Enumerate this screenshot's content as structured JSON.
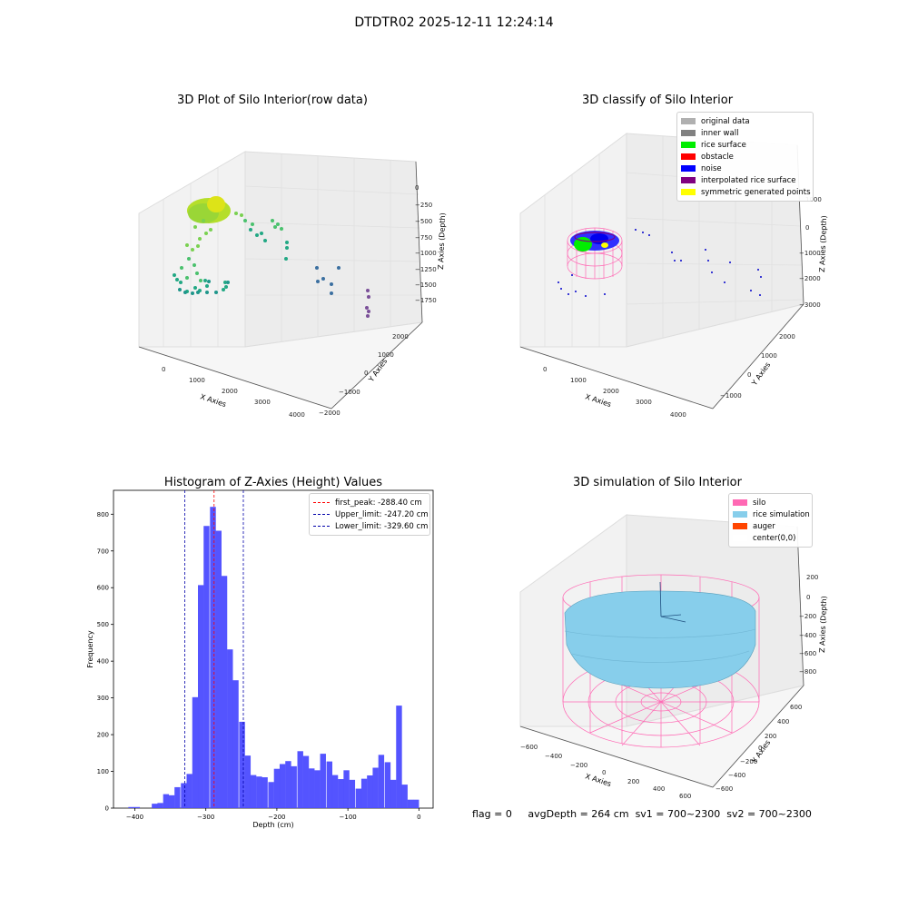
{
  "suptitle": "DTDTR02 2025-12-11 12:24:14",
  "plots": {
    "raw": {
      "title": "3D Plot of Silo Interior(row data)",
      "x_label": "X Axies",
      "y_label": "Y Axies",
      "z_label": "Z Axies (Depth)",
      "x_ticks": [
        "0",
        "1000",
        "2000",
        "3000",
        "4000"
      ],
      "y_ticks": [
        "2000",
        "1000",
        "0",
        "−1000",
        "−2000"
      ],
      "z_ticks": [
        "0",
        "−250",
        "−500",
        "−750",
        "−1000",
        "−1250",
        "−1500",
        "−1750"
      ]
    },
    "classify": {
      "title": "3D classify of Silo Interior",
      "x_label": "X Axies",
      "y_label": "Y Axies",
      "z_label": "Z Axies (Depth)",
      "x_ticks": [
        "0",
        "1000",
        "2000",
        "3000",
        "4000"
      ],
      "y_ticks": [
        "2000",
        "1000",
        "0",
        "−1000"
      ],
      "z_ticks": [
        "1000",
        "0",
        "−1000",
        "−2000",
        "−3000"
      ],
      "legend": [
        {
          "label": "original data",
          "color": "#b0b0b0"
        },
        {
          "label": "inner wall",
          "color": "#808080"
        },
        {
          "label": "rice surface",
          "color": "#00ee00"
        },
        {
          "label": "obstacle",
          "color": "#ff0000"
        },
        {
          "label": "noise",
          "color": "#0000ff"
        },
        {
          "label": "interpolated rice surface",
          "color": "#800080"
        },
        {
          "label": "symmetric generated points",
          "color": "#ffff00"
        }
      ]
    },
    "simulation": {
      "title": "3D simulation of Silo Interior",
      "x_label": "X Axies",
      "y_label": "Y Axies",
      "z_label": "Z Axies (Depth)",
      "x_ticks": [
        "−600",
        "−400",
        "−200",
        "0",
        "200",
        "400",
        "600"
      ],
      "y_ticks": [
        "600",
        "400",
        "200",
        "0",
        "−200",
        "−400",
        "−600"
      ],
      "z_ticks": [
        "200",
        "0",
        "−200",
        "−400",
        "−600",
        "−800"
      ],
      "legend": [
        {
          "label": "silo",
          "color": "#ff69b4"
        },
        {
          "label": "rice simulation",
          "color": "#87ceeb"
        },
        {
          "label": "auger",
          "color": "#ff4500"
        },
        {
          "label": "center(0,0)",
          "color": "#ffffff"
        }
      ]
    }
  },
  "chart_data": {
    "type": "bar",
    "title": "Histogram of Z-Axies (Height) Values",
    "xlabel": "Depth (cm)",
    "ylabel": "Frequency",
    "xlim": [
      -430,
      20
    ],
    "ylim": [
      0,
      865
    ],
    "x_ticks": [
      -400,
      -300,
      -200,
      -100,
      0
    ],
    "y_ticks": [
      0,
      100,
      200,
      300,
      400,
      500,
      600,
      700,
      800
    ],
    "bin_width": 8.2,
    "bins": [
      {
        "x": -405,
        "value": 3
      },
      {
        "x": -397,
        "value": 3
      },
      {
        "x": -389,
        "value": 0
      },
      {
        "x": -381,
        "value": 0
      },
      {
        "x": -372,
        "value": 12
      },
      {
        "x": -364,
        "value": 14
      },
      {
        "x": -356,
        "value": 38
      },
      {
        "x": -348,
        "value": 35
      },
      {
        "x": -340,
        "value": 57
      },
      {
        "x": -331,
        "value": 68
      },
      {
        "x": -323,
        "value": 93
      },
      {
        "x": -315,
        "value": 302
      },
      {
        "x": -307,
        "value": 607
      },
      {
        "x": -299,
        "value": 768
      },
      {
        "x": -290,
        "value": 820
      },
      {
        "x": -282,
        "value": 755
      },
      {
        "x": -274,
        "value": 632
      },
      {
        "x": -266,
        "value": 432
      },
      {
        "x": -258,
        "value": 348
      },
      {
        "x": -249,
        "value": 235
      },
      {
        "x": -241,
        "value": 143
      },
      {
        "x": -233,
        "value": 90
      },
      {
        "x": -225,
        "value": 86
      },
      {
        "x": -217,
        "value": 84
      },
      {
        "x": -208,
        "value": 71
      },
      {
        "x": -200,
        "value": 107
      },
      {
        "x": -192,
        "value": 120
      },
      {
        "x": -184,
        "value": 128
      },
      {
        "x": -176,
        "value": 114
      },
      {
        "x": -167,
        "value": 155
      },
      {
        "x": -159,
        "value": 142
      },
      {
        "x": -151,
        "value": 108
      },
      {
        "x": -143,
        "value": 103
      },
      {
        "x": -135,
        "value": 148
      },
      {
        "x": -126,
        "value": 127
      },
      {
        "x": -118,
        "value": 90
      },
      {
        "x": -110,
        "value": 79
      },
      {
        "x": -102,
        "value": 103
      },
      {
        "x": -94,
        "value": 77
      },
      {
        "x": -85,
        "value": 53
      },
      {
        "x": -77,
        "value": 80
      },
      {
        "x": -69,
        "value": 89
      },
      {
        "x": -61,
        "value": 110
      },
      {
        "x": -53,
        "value": 145
      },
      {
        "x": -44,
        "value": 125
      },
      {
        "x": -36,
        "value": 77
      },
      {
        "x": -28,
        "value": 279
      },
      {
        "x": -20,
        "value": 64
      },
      {
        "x": -12,
        "value": 23
      },
      {
        "x": -4,
        "value": 23
      }
    ],
    "color": "#4b4bff",
    "lines": [
      {
        "name": "first_peak: -288.40 cm",
        "x": -288.4,
        "color": "#ff0000"
      },
      {
        "name": "Upper_limit: -247.20 cm",
        "x": -247.2,
        "color": "#0000aa"
      },
      {
        "name": "Lower_limit: -329.60 cm",
        "x": -329.6,
        "color": "#0000aa"
      }
    ],
    "legend_position": "upper right"
  },
  "footer": {
    "flag": "flag = 0",
    "avg": "avgDepth = 264 cm",
    "sv1": "sv1 = 700~2300",
    "sv2": "sv2 = 700~2300"
  }
}
